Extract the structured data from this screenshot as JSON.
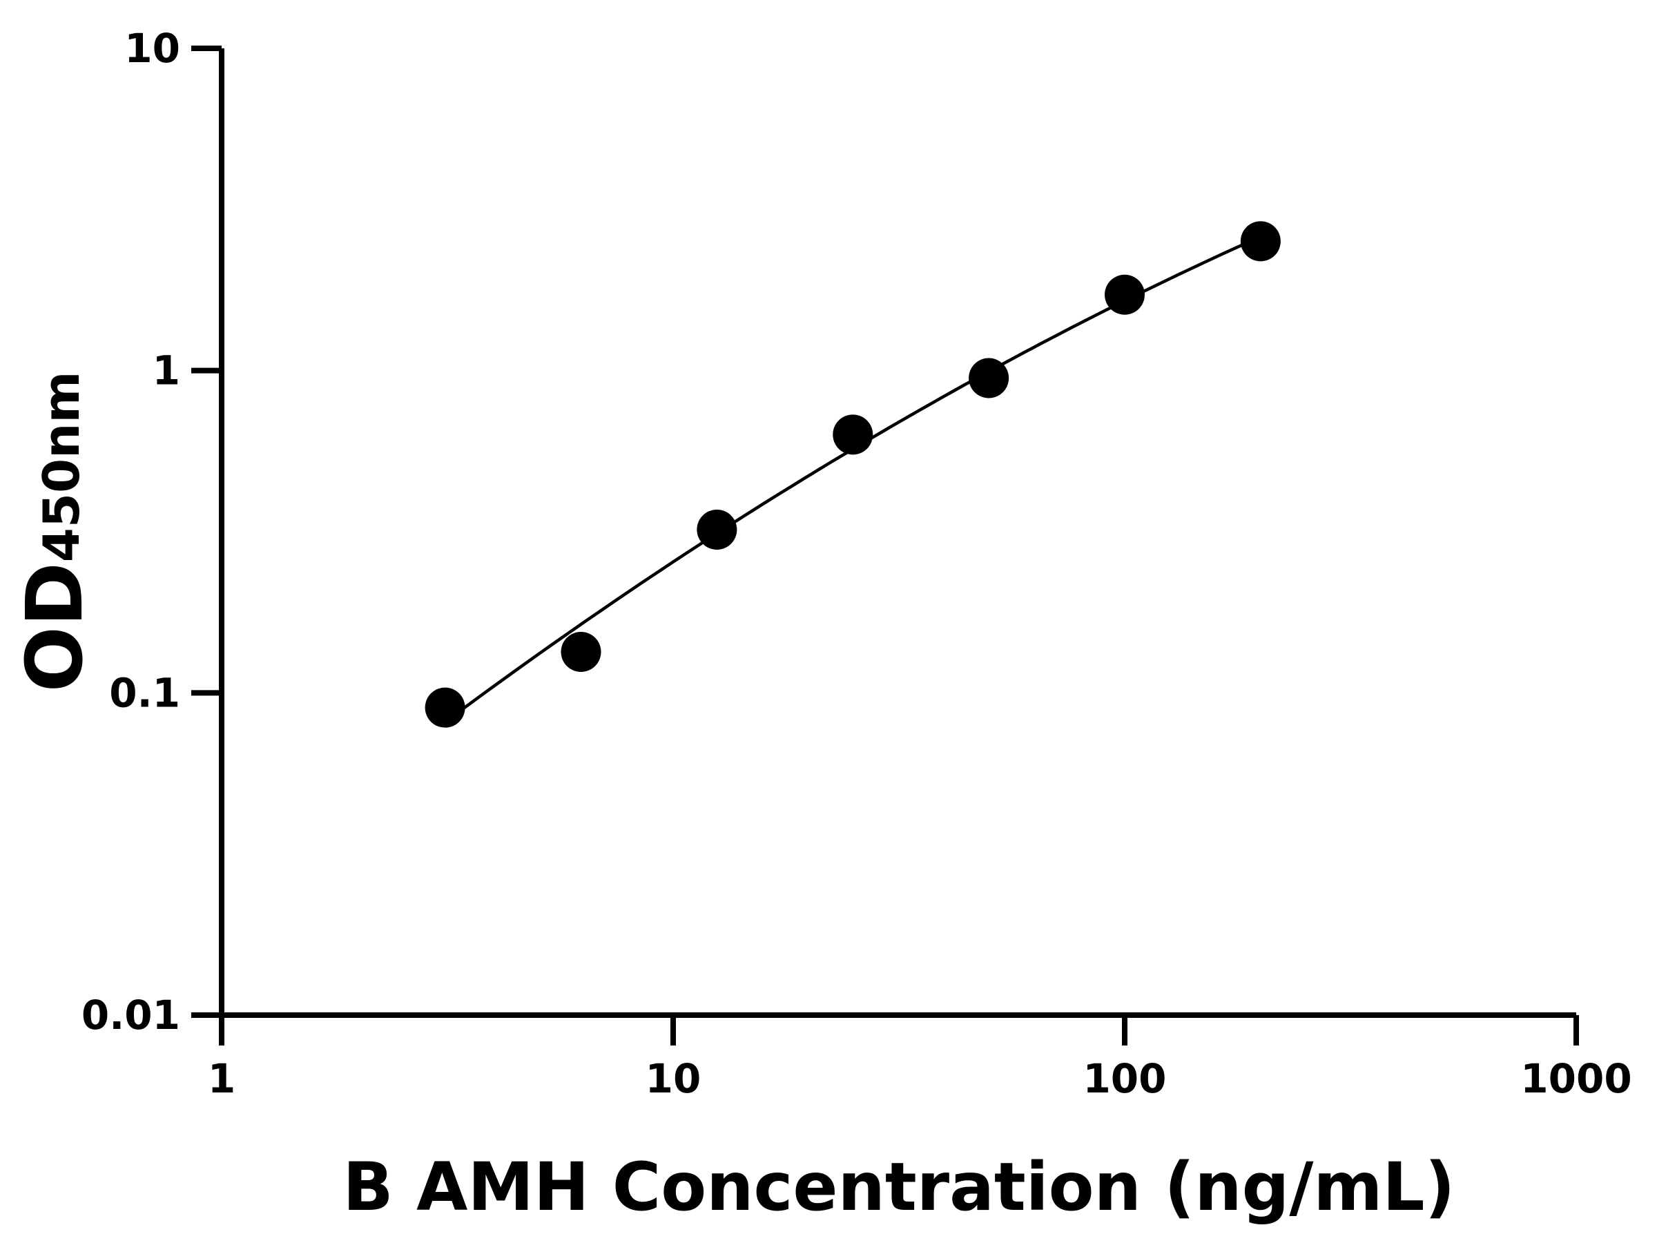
{
  "chart_data": {
    "type": "scatter",
    "title": "",
    "xlabel": "B AMH Concentration (ng/mL)",
    "ylabel_main": "OD",
    "ylabel_sub": "450nm",
    "x_scale": "log",
    "y_scale": "log",
    "xlim": [
      1,
      1000
    ],
    "ylim": [
      0.01,
      10
    ],
    "x_ticks": [
      "1",
      "10",
      "100",
      "1000"
    ],
    "y_ticks": [
      "0.01",
      "0.1",
      "1",
      "10"
    ],
    "grid": false,
    "legend": "none",
    "fit_curve": true,
    "marker_color": "#000000",
    "x": [
      3.125,
      6.25,
      12.5,
      25,
      50,
      100,
      200
    ],
    "y": [
      0.09,
      0.134,
      0.321,
      0.633,
      0.948,
      1.72,
      2.52
    ]
  }
}
